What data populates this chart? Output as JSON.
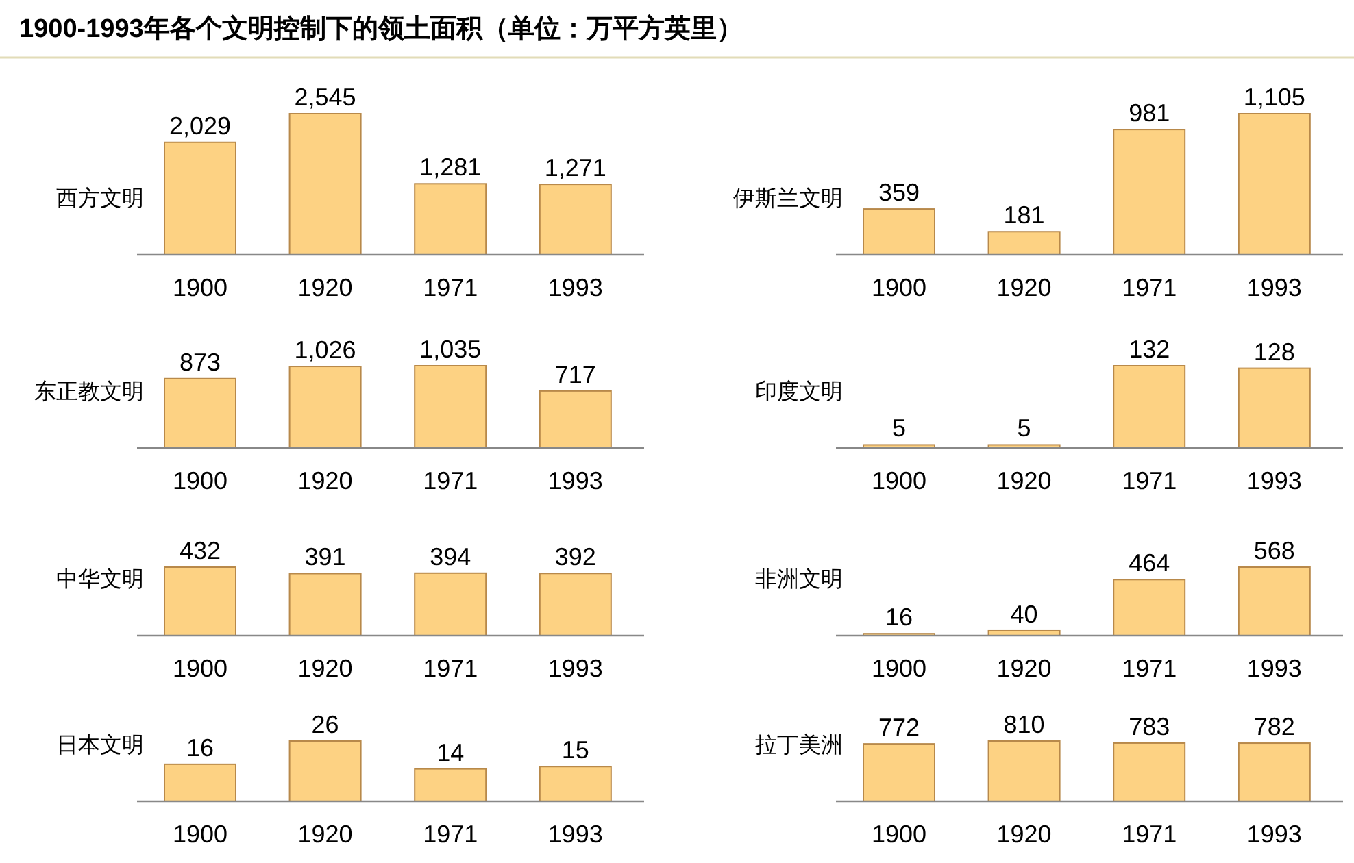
{
  "chart_data": [
    {
      "type": "bar",
      "title": "1900-1993年各个文明控制下的领土面积（单位：万平方英里）",
      "ylabel": "西方文明",
      "categories": [
        "1900",
        "1920",
        "1971",
        "1993"
      ],
      "values": [
        2029,
        2545,
        1281,
        1271
      ],
      "value_labels": [
        "2,029",
        "2,545",
        "1,281",
        "1,271"
      ],
      "color": "#fdd283"
    },
    {
      "type": "bar",
      "ylabel": "伊斯兰文明",
      "categories": [
        "1900",
        "1920",
        "1971",
        "1993"
      ],
      "values": [
        359,
        181,
        981,
        1105
      ],
      "value_labels": [
        "359",
        "181",
        "981",
        "1,105"
      ],
      "color": "#fdd283"
    },
    {
      "type": "bar",
      "ylabel": "东正教文明",
      "categories": [
        "1900",
        "1920",
        "1971",
        "1993"
      ],
      "values": [
        873,
        1026,
        1035,
        717
      ],
      "value_labels": [
        "873",
        "1,026",
        "1,035",
        "717"
      ],
      "color": "#fdd283"
    },
    {
      "type": "bar",
      "ylabel": "印度文明",
      "categories": [
        "1900",
        "1920",
        "1971",
        "1993"
      ],
      "values": [
        5,
        5,
        132,
        128
      ],
      "value_labels": [
        "5",
        "5",
        "132",
        "128"
      ],
      "color": "#fdd283"
    },
    {
      "type": "bar",
      "ylabel": "中华文明",
      "categories": [
        "1900",
        "1920",
        "1971",
        "1993"
      ],
      "values": [
        432,
        391,
        394,
        392
      ],
      "value_labels": [
        "432",
        "391",
        "394",
        "392"
      ],
      "color": "#fdd283"
    },
    {
      "type": "bar",
      "ylabel": "非洲文明",
      "categories": [
        "1900",
        "1920",
        "1971",
        "1993"
      ],
      "values": [
        16,
        40,
        464,
        568
      ],
      "value_labels": [
        "16",
        "40",
        "464",
        "568"
      ],
      "color": "#fdd283"
    },
    {
      "type": "bar",
      "ylabel": "日本文明",
      "categories": [
        "1900",
        "1920",
        "1971",
        "1993"
      ],
      "values": [
        16,
        26,
        14,
        15
      ],
      "value_labels": [
        "16",
        "26",
        "14",
        "15"
      ],
      "color": "#fdd283"
    },
    {
      "type": "bar",
      "ylabel": "拉丁美洲",
      "categories": [
        "1900",
        "1920",
        "1971",
        "1993"
      ],
      "values": [
        772,
        810,
        783,
        782
      ],
      "value_labels": [
        "772",
        "810",
        "783",
        "782"
      ],
      "color": "#fdd283"
    }
  ]
}
